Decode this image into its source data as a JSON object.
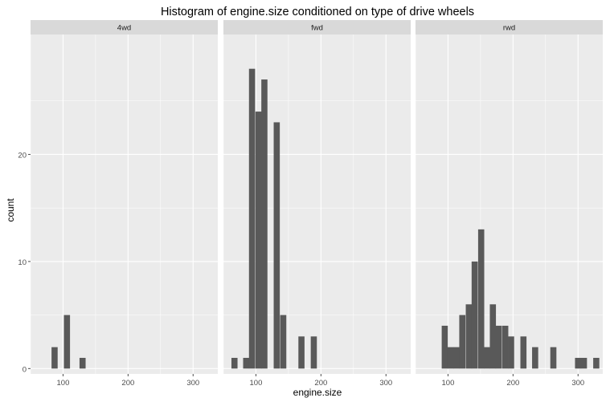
{
  "chart_data": {
    "type": "histogram",
    "title": "Histogram of engine.size conditioned on type of drive wheels",
    "xlabel": "engine.size",
    "ylabel": "count",
    "xlim": [
      50,
      338
    ],
    "ylim": [
      -0.5,
      31.2
    ],
    "x_ticks": [
      100,
      200,
      300
    ],
    "y_ticks": [
      0,
      10,
      20
    ],
    "bin_width": 9.4,
    "grid": true,
    "bar_color": "#595959",
    "panel_background": "#ebebeb",
    "strip_background": "#d9d9d9",
    "panels": [
      {
        "label": "4wd",
        "bars": [
          {
            "x": 87,
            "count": 2
          },
          {
            "x": 106,
            "count": 5
          },
          {
            "x": 130,
            "count": 1
          }
        ]
      },
      {
        "label": "fwd",
        "bars": [
          {
            "x": 67,
            "count": 1
          },
          {
            "x": 85,
            "count": 1
          },
          {
            "x": 94,
            "count": 28
          },
          {
            "x": 104,
            "count": 24
          },
          {
            "x": 113,
            "count": 27
          },
          {
            "x": 132,
            "count": 23
          },
          {
            "x": 142,
            "count": 5
          },
          {
            "x": 170,
            "count": 3
          },
          {
            "x": 189,
            "count": 3
          }
        ]
      },
      {
        "label": "rwd",
        "bars": [
          {
            "x": 95,
            "count": 4
          },
          {
            "x": 104,
            "count": 2
          },
          {
            "x": 113,
            "count": 2
          },
          {
            "x": 122,
            "count": 5
          },
          {
            "x": 132,
            "count": 6
          },
          {
            "x": 141,
            "count": 10
          },
          {
            "x": 151,
            "count": 13
          },
          {
            "x": 160,
            "count": 2
          },
          {
            "x": 169,
            "count": 6
          },
          {
            "x": 178,
            "count": 4
          },
          {
            "x": 188,
            "count": 4
          },
          {
            "x": 197,
            "count": 3
          },
          {
            "x": 216,
            "count": 3
          },
          {
            "x": 234,
            "count": 2
          },
          {
            "x": 262,
            "count": 2
          },
          {
            "x": 300,
            "count": 1
          },
          {
            "x": 309,
            "count": 1
          },
          {
            "x": 328,
            "count": 1
          }
        ]
      }
    ]
  }
}
